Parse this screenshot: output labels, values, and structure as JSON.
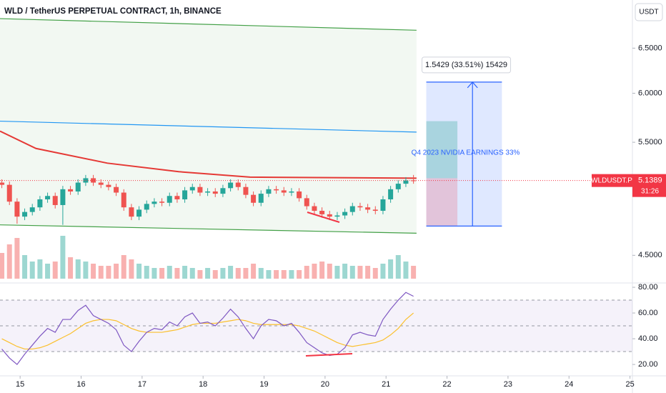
{
  "chart_data": [
    {
      "type": "candlestick",
      "title": "WLD / TetherUS PERPETUAL CONTRACT, 1h, BINANCE",
      "currency": "USDT",
      "symbol": "WLDUSDT.P",
      "last_price": {
        "value": 5.1389,
        "label": "5.1389"
      },
      "countdown": "31:26",
      "log_scale": true,
      "up_color": "#26a69a",
      "down_color": "#ef5350",
      "xlim": [
        14.67,
        25.04
      ],
      "ylim": [
        4.29,
        7.08
      ],
      "yticks": [
        {
          "value": 4.5,
          "label": "4.5000"
        },
        {
          "value": 5.5,
          "label": "5.5000"
        },
        {
          "value": 6,
          "label": "6.0000"
        },
        {
          "value": 6.5,
          "label": "6.5000"
        }
      ],
      "x": [
        14.7,
        14.825,
        14.95,
        15.075,
        15.2,
        15.325,
        15.45,
        15.575,
        15.7,
        15.825,
        15.95,
        16.075,
        16.2,
        16.325,
        16.45,
        16.575,
        16.7,
        16.825,
        16.95,
        17.075,
        17.2,
        17.325,
        17.45,
        17.575,
        17.7,
        17.825,
        17.95,
        18.075,
        18.2,
        18.325,
        18.45,
        18.575,
        18.7,
        18.825,
        18.95,
        19.075,
        19.2,
        19.325,
        19.45,
        19.575,
        19.7,
        19.825,
        19.95,
        20.075,
        20.2,
        20.325,
        20.45,
        20.575,
        20.7,
        20.825,
        20.95,
        21.075,
        21.2,
        21.325,
        21.45
      ],
      "open": [
        5.12,
        5.1,
        4.95,
        4.82,
        4.86,
        4.9,
        4.97,
        5.0,
        4.92,
        5.06,
        5.04,
        5.12,
        5.16,
        5.12,
        5.1,
        5.08,
        5.03,
        4.9,
        4.82,
        4.88,
        4.93,
        4.95,
        4.94,
        5.0,
        4.97,
        5.05,
        5.08,
        5.03,
        5.04,
        5.02,
        5.07,
        5.12,
        5.08,
        5.01,
        4.94,
        5.02,
        5.06,
        5.05,
        5.03,
        5.04,
        4.98,
        4.91,
        4.87,
        4.84,
        4.82,
        4.83,
        4.86,
        4.91,
        4.9,
        4.88,
        4.87,
        4.97,
        5.06,
        5.11,
        5.14
      ],
      "high": [
        5.15,
        5.13,
        4.98,
        4.89,
        4.93,
        5.0,
        5.03,
        5.03,
        5.09,
        5.09,
        5.15,
        5.19,
        5.19,
        5.15,
        5.13,
        5.11,
        5.06,
        4.93,
        4.91,
        4.96,
        4.98,
        4.98,
        5.03,
        5.03,
        5.08,
        5.11,
        5.11,
        5.07,
        5.07,
        5.1,
        5.15,
        5.15,
        5.11,
        5.04,
        5.05,
        5.09,
        5.09,
        5.08,
        5.07,
        5.07,
        5.01,
        4.94,
        4.9,
        4.87,
        4.86,
        4.89,
        4.94,
        4.94,
        4.93,
        4.91,
        5.0,
        5.09,
        5.14,
        5.17,
        5.19
      ],
      "low": [
        5.07,
        4.92,
        4.76,
        4.79,
        4.83,
        4.87,
        4.94,
        4.89,
        4.75,
        5.01,
        5.01,
        5.09,
        5.09,
        5.07,
        5.05,
        5.0,
        4.87,
        4.79,
        4.79,
        4.85,
        4.9,
        4.91,
        4.91,
        4.94,
        4.94,
        5.02,
        5.0,
        5.0,
        4.99,
        4.99,
        5.04,
        5.05,
        4.98,
        4.91,
        4.91,
        4.99,
        5.02,
        5.0,
        5.0,
        4.95,
        4.88,
        4.84,
        4.81,
        4.79,
        4.79,
        4.8,
        4.83,
        4.87,
        4.85,
        4.84,
        4.84,
        4.94,
        5.03,
        5.08,
        5.11
      ],
      "close": [
        5.1,
        4.95,
        4.82,
        4.86,
        4.9,
        4.97,
        5.0,
        4.92,
        5.06,
        5.04,
        5.12,
        5.16,
        5.12,
        5.1,
        5.08,
        5.03,
        4.9,
        4.82,
        4.88,
        4.93,
        4.95,
        4.94,
        5.0,
        4.97,
        5.05,
        5.08,
        5.03,
        5.04,
        5.02,
        5.07,
        5.12,
        5.08,
        5.01,
        4.94,
        5.02,
        5.06,
        5.05,
        5.03,
        5.04,
        4.98,
        4.91,
        4.87,
        4.84,
        4.82,
        4.83,
        4.86,
        4.91,
        4.9,
        4.88,
        4.87,
        4.97,
        5.06,
        5.11,
        5.14,
        5.1389
      ],
      "volume": [
        60,
        80,
        95,
        55,
        40,
        45,
        35,
        40,
        100,
        50,
        45,
        40,
        35,
        30,
        30,
        35,
        55,
        45,
        35,
        30,
        25,
        25,
        30,
        25,
        30,
        25,
        20,
        25,
        20,
        25,
        30,
        25,
        25,
        35,
        25,
        20,
        20,
        20,
        20,
        20,
        30,
        35,
        40,
        35,
        30,
        35,
        30,
        30,
        30,
        25,
        35,
        45,
        55,
        40,
        30
      ],
      "volume_max": 100,
      "channel": {
        "color": "#43a047",
        "x": [
          14.67,
          21.5
        ],
        "upper": [
          6.85,
          6.71
        ],
        "lower": [
          4.75,
          4.68
        ]
      },
      "overlays": [
        {
          "color": "#e53935",
          "x": [
            14.67,
            15.26,
            16.43,
            17.6,
            18.77,
            21.5
          ],
          "values": [
            5.61,
            5.44,
            5.3,
            5.22,
            5.17,
            5.16
          ]
        },
        {
          "color": "#2196f3",
          "x": [
            14.67,
            21.5
          ],
          "values": [
            5.71,
            5.6
          ]
        }
      ],
      "position": {
        "x": [
          21.66,
          22.9
        ],
        "top": 6.12,
        "bottom": 4.74,
        "inner_x": [
          21.66,
          22.17
        ],
        "inner_top": 5.71,
        "inner_mid": 5.16,
        "label": "1.5429 (33.51%) 15429",
        "note": "Q4 2023 NVIDIA EARNINGS 33%"
      }
    },
    {
      "type": "line",
      "color": "#7e57c2",
      "ma_color": "#fbc02d",
      "xlim": [
        14.67,
        25.04
      ],
      "xticks": [
        15,
        16,
        17,
        18,
        19,
        20,
        21,
        22,
        23,
        24,
        25
      ],
      "ylim": [
        11.7,
        82.8
      ],
      "yticks": [
        {
          "value": 20,
          "label": "20.00"
        },
        {
          "value": 40,
          "label": "40.00"
        },
        {
          "value": 60,
          "label": "60.00"
        },
        {
          "value": 80,
          "label": "80.00"
        }
      ],
      "band": [
        30,
        70
      ],
      "midline": 50,
      "x": [
        14.7,
        14.825,
        14.95,
        15.075,
        15.2,
        15.325,
        15.45,
        15.575,
        15.7,
        15.825,
        15.95,
        16.075,
        16.2,
        16.325,
        16.45,
        16.575,
        16.7,
        16.825,
        16.95,
        17.075,
        17.2,
        17.325,
        17.45,
        17.575,
        17.7,
        17.825,
        17.95,
        18.075,
        18.2,
        18.325,
        18.45,
        18.575,
        18.7,
        18.825,
        18.95,
        19.075,
        19.2,
        19.325,
        19.45,
        19.575,
        19.7,
        19.825,
        19.95,
        20.075,
        20.2,
        20.325,
        20.45,
        20.575,
        20.7,
        20.825,
        20.95,
        21.075,
        21.2,
        21.325,
        21.45
      ],
      "values": [
        32,
        25,
        20,
        28,
        35,
        42,
        48,
        45,
        55,
        55,
        62,
        66,
        58,
        55,
        52,
        47,
        35,
        30,
        38,
        45,
        48,
        47,
        53,
        50,
        57,
        60,
        52,
        53,
        50,
        56,
        63,
        57,
        48,
        40,
        50,
        55,
        54,
        50,
        52,
        45,
        37,
        33,
        29,
        27,
        28,
        33,
        43,
        45,
        43,
        42,
        55,
        63,
        70,
        76,
        73
      ],
      "ma": [
        40,
        37,
        34,
        32,
        32,
        33,
        35,
        38,
        41,
        44,
        48,
        52,
        54,
        55,
        55,
        54,
        51,
        48,
        46,
        45,
        45,
        45,
        46,
        47,
        49,
        51,
        52,
        52,
        52,
        53,
        54,
        55,
        54,
        52,
        51,
        51,
        51,
        51,
        51,
        50,
        48,
        46,
        43,
        40,
        37,
        35,
        34,
        35,
        36,
        37,
        39,
        43,
        48,
        55,
        60
      ]
    }
  ]
}
